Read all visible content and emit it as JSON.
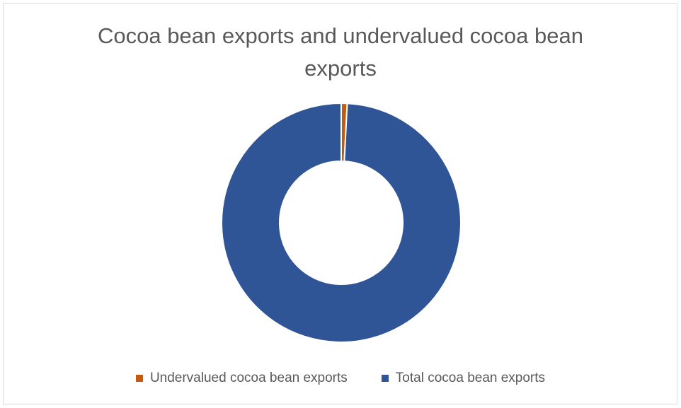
{
  "chart_data": {
    "type": "pie",
    "variant": "doughnut",
    "title": "Cocoa bean exports and undervalued cocoa bean exports",
    "categories": [
      "Undervalued cocoa bean exports",
      "Total cocoa bean exports"
    ],
    "values": [
      0.8,
      99.2
    ],
    "colors": [
      "#c55a11",
      "#2f5597"
    ],
    "legend_position": "bottom",
    "start_angle_deg": 0
  }
}
